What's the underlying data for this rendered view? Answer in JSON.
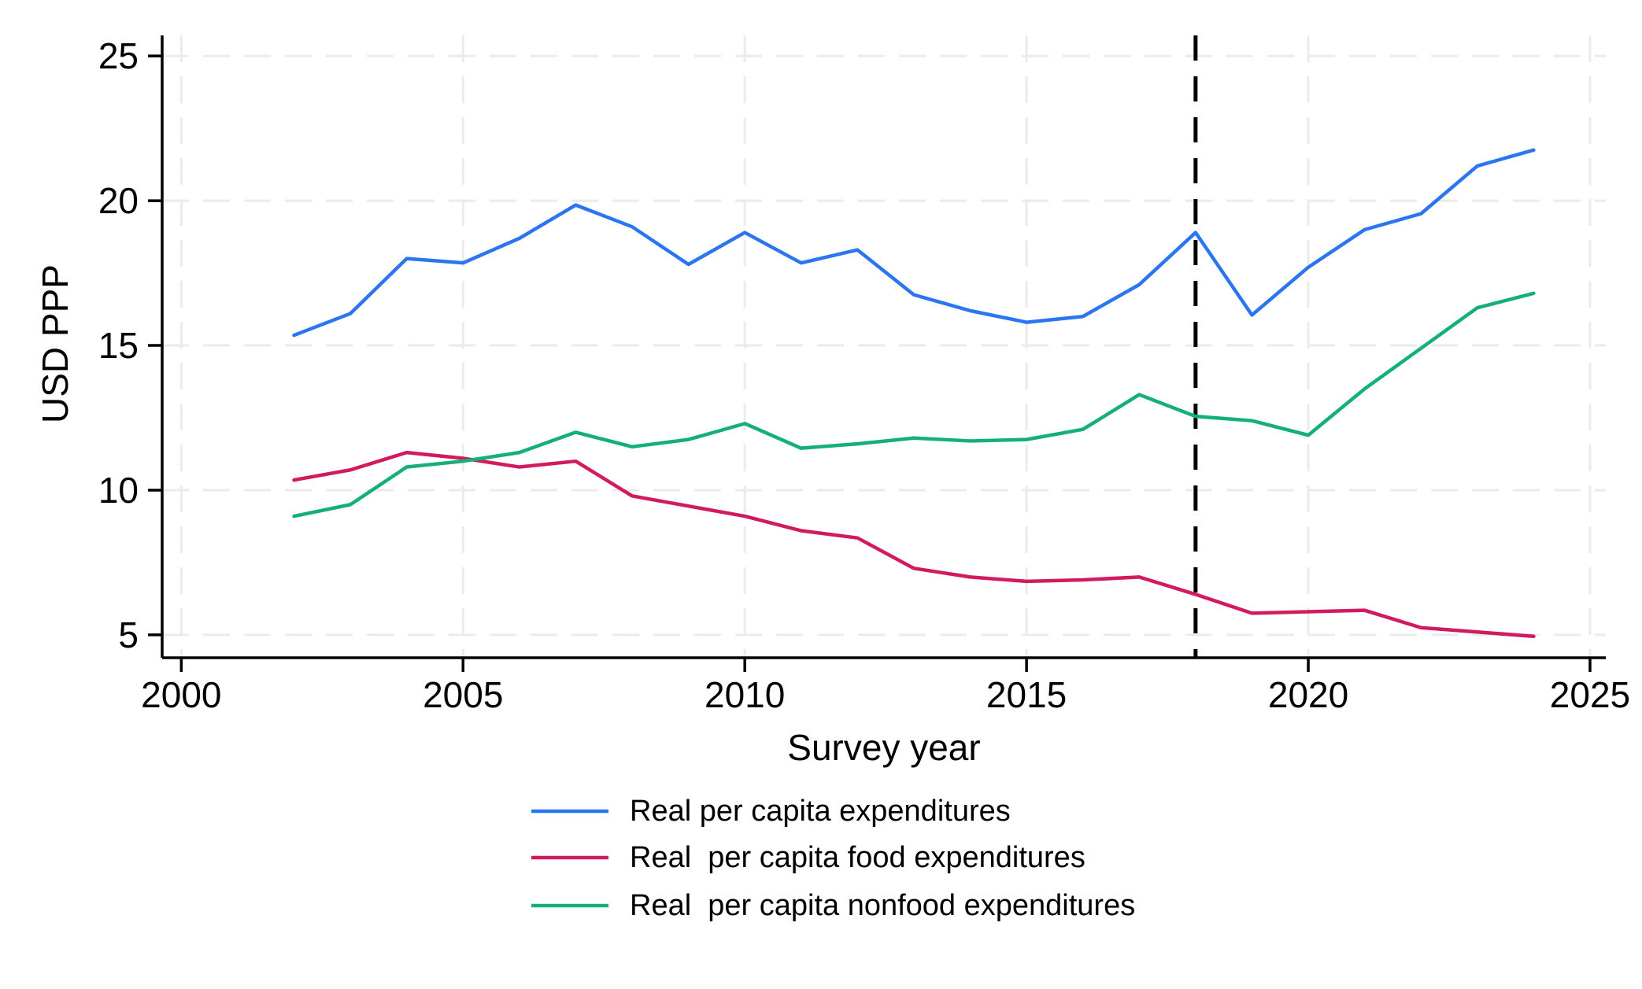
{
  "chart_data": {
    "type": "line",
    "title": "",
    "xlabel": "Survey year",
    "ylabel": "USD PPP",
    "x": [
      2002,
      2003,
      2004,
      2005,
      2006,
      2007,
      2008,
      2009,
      2010,
      2011,
      2012,
      2013,
      2014,
      2015,
      2016,
      2017,
      2018,
      2019,
      2020,
      2021,
      2022,
      2023,
      2024
    ],
    "series": [
      {
        "name": "Real per capita expenditures",
        "color": "#2B76F0",
        "values": [
          15.35,
          16.1,
          18.0,
          17.85,
          18.7,
          19.85,
          19.1,
          17.8,
          18.9,
          17.85,
          18.3,
          16.75,
          16.2,
          15.8,
          16.0,
          17.1,
          18.9,
          16.05,
          17.7,
          19.0,
          19.55,
          21.2,
          21.75
        ]
      },
      {
        "name": "Real  per capita food expenditures",
        "color": "#D11A5F",
        "values": [
          10.35,
          10.7,
          11.3,
          11.1,
          10.8,
          11.0,
          9.8,
          9.45,
          9.1,
          8.6,
          8.35,
          7.3,
          7.0,
          6.85,
          6.9,
          7.0,
          6.4,
          5.75,
          5.8,
          5.85,
          5.25,
          5.1,
          4.95
        ]
      },
      {
        "name": "Real  per capita nonfood expenditures",
        "color": "#15B077",
        "values": [
          9.1,
          9.5,
          10.8,
          11.0,
          11.3,
          12.0,
          11.5,
          11.75,
          12.3,
          11.45,
          11.6,
          11.8,
          11.7,
          11.75,
          12.1,
          13.3,
          12.55,
          12.4,
          11.9,
          13.5,
          14.9,
          16.3,
          16.8
        ]
      }
    ],
    "x_ticks": [
      2000,
      2005,
      2010,
      2015,
      2020,
      2025
    ],
    "y_ticks": [
      5,
      10,
      15,
      20,
      25
    ],
    "xlim": [
      1999.66,
      2025.28
    ],
    "ylim": [
      4.21,
      25.71
    ],
    "reference_line_x": 2018,
    "grid": true,
    "grid_color": "#EBEBEB",
    "reference_line_color": "#000000",
    "axis_color": "#000000",
    "legend_position": "bottom-left"
  }
}
